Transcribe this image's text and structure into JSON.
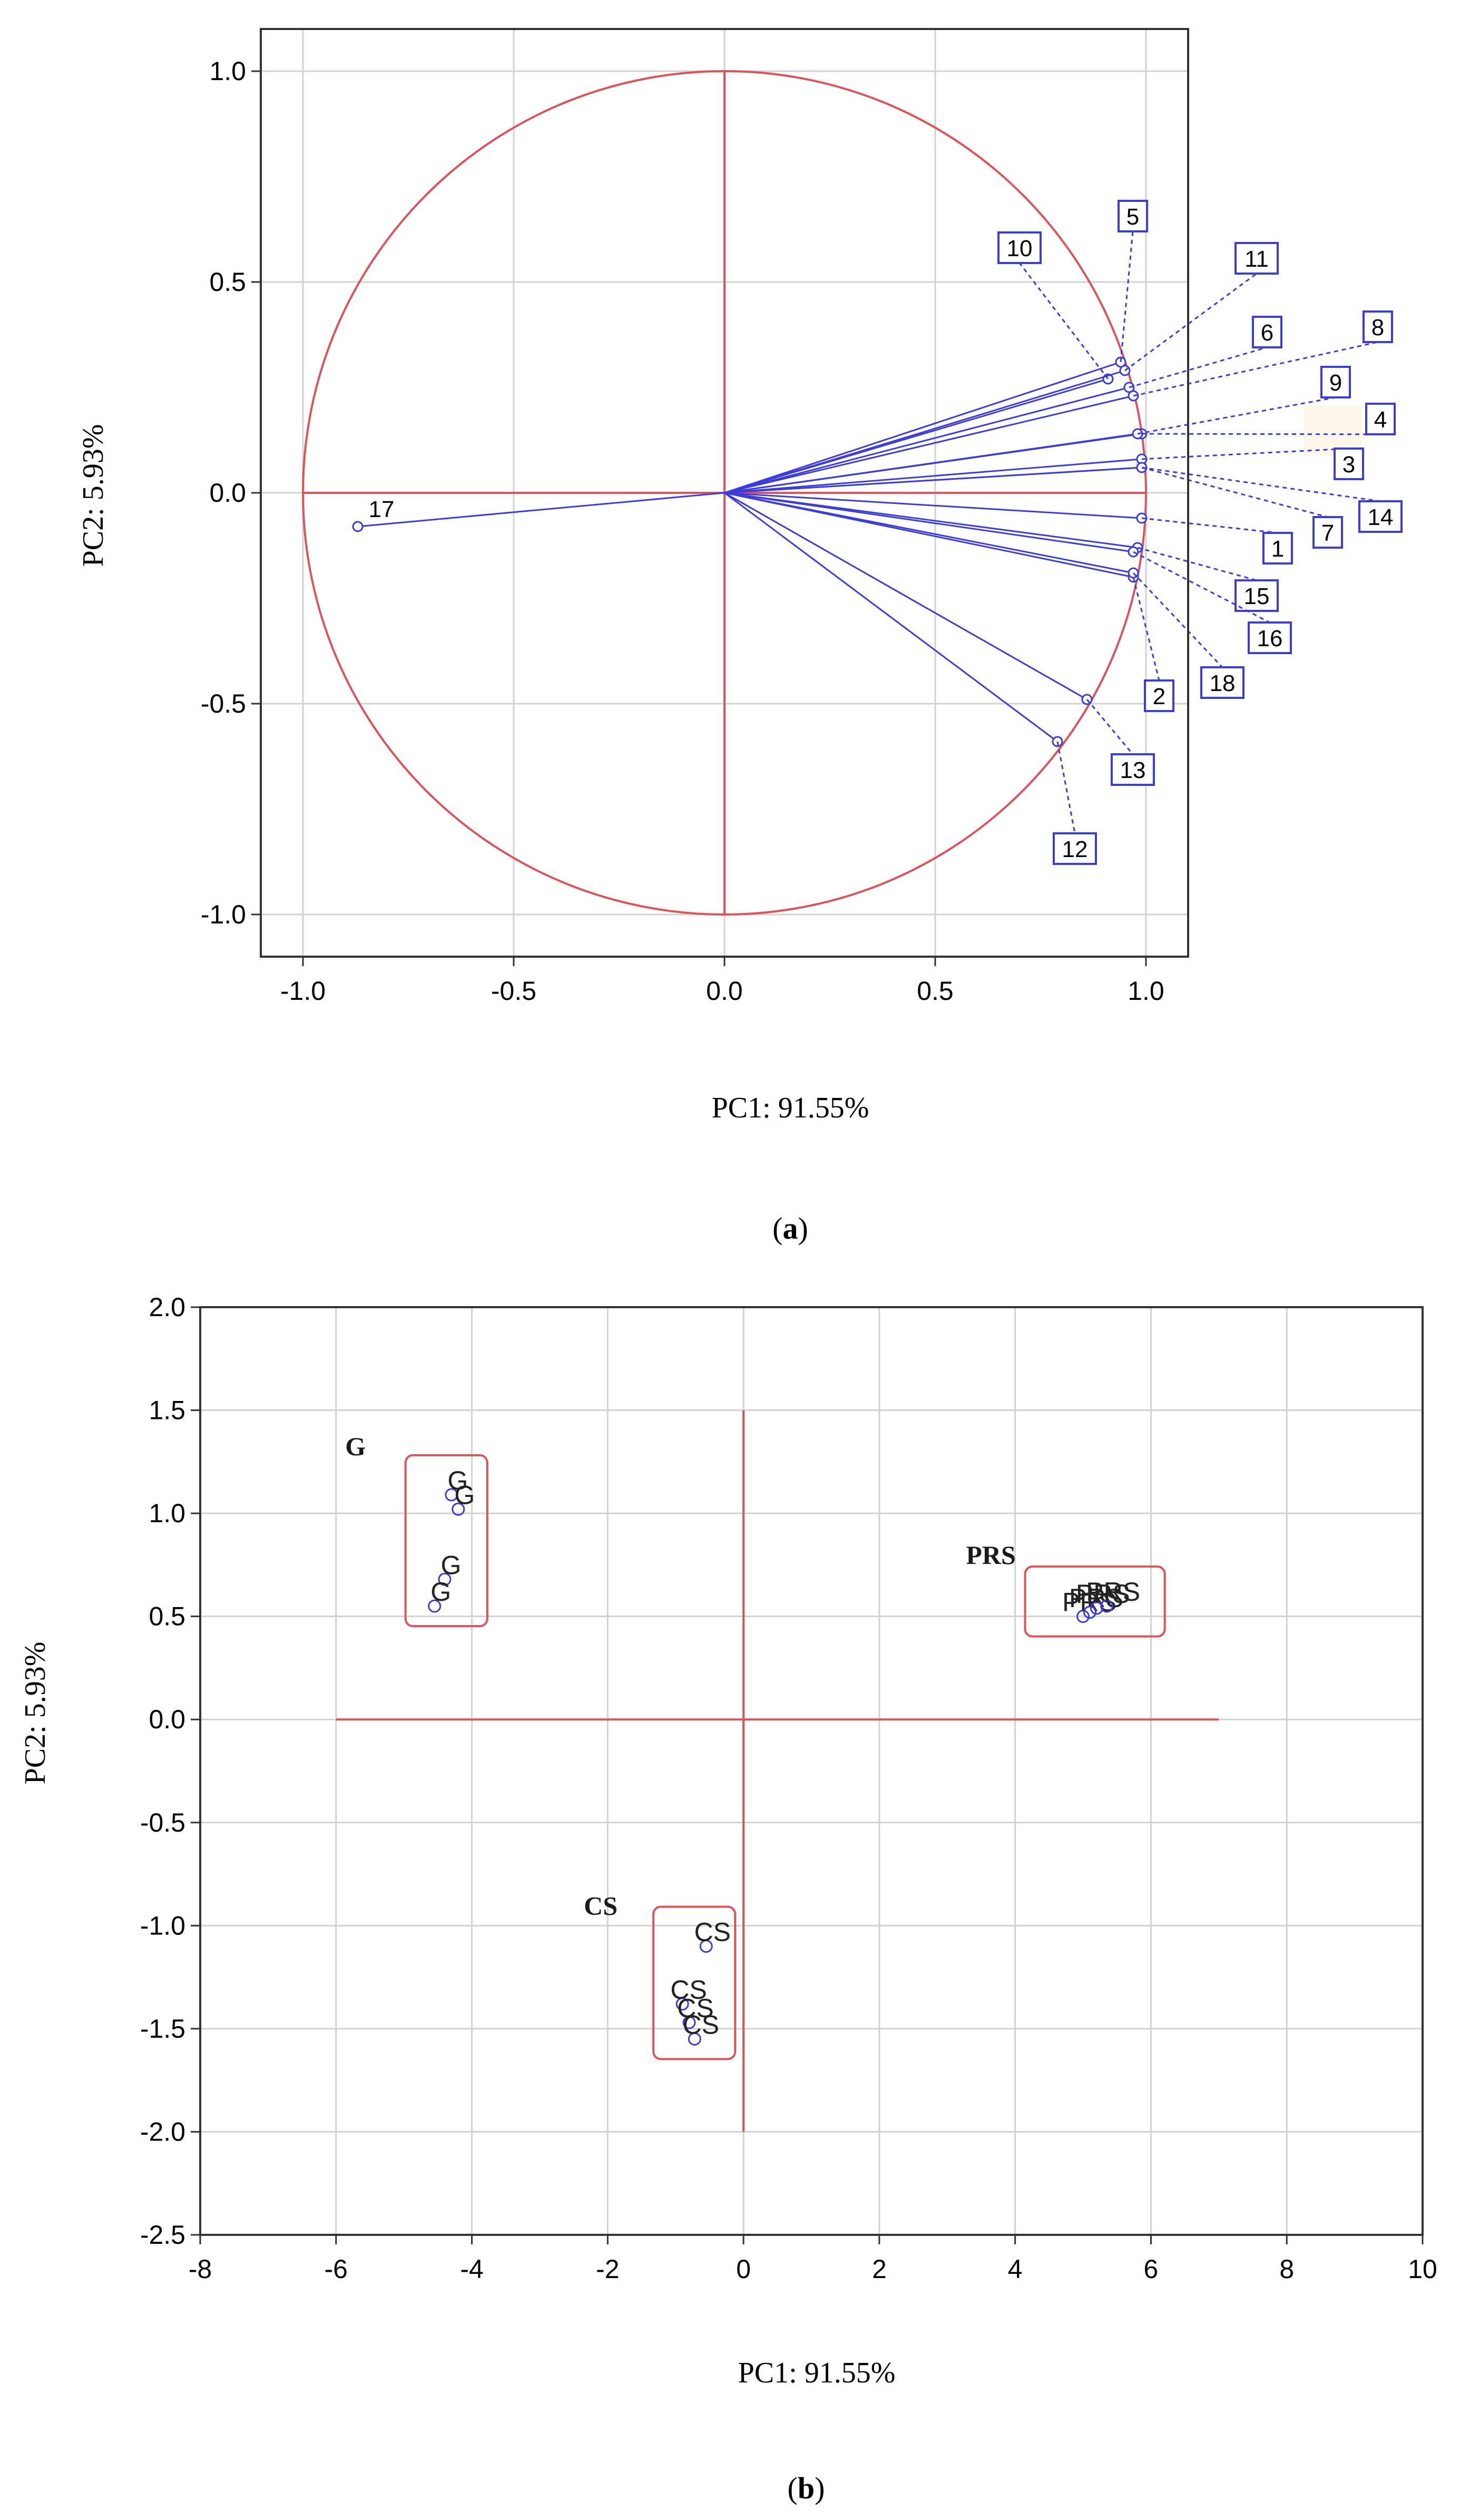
{
  "chart_data": [
    {
      "type": "scatter",
      "subtype": "pca-loadings-circle",
      "xlabel": "PC1: 91.55%",
      "ylabel": "PC2: 5.93%",
      "xlim": [
        -1.1,
        1.1
      ],
      "ylim": [
        -1.1,
        1.1
      ],
      "x_ticks": [
        "-1.0",
        "-0.5",
        "0.0",
        "0.5",
        "1.0"
      ],
      "y_ticks": [
        "1.0",
        "0.5",
        "0.0",
        "-0.5",
        "-1.0"
      ],
      "grid": true,
      "unit_circle": true,
      "caption_letter": "a",
      "loadings": [
        {
          "label": "1",
          "x": 0.99,
          "y": -0.06
        },
        {
          "label": "2",
          "x": 0.97,
          "y": -0.2
        },
        {
          "label": "3",
          "x": 0.99,
          "y": 0.08
        },
        {
          "label": "4",
          "x": 0.99,
          "y": 0.14
        },
        {
          "label": "5",
          "x": 0.94,
          "y": 0.31
        },
        {
          "label": "6",
          "x": 0.96,
          "y": 0.25
        },
        {
          "label": "7",
          "x": 0.99,
          "y": 0.06
        },
        {
          "label": "8",
          "x": 0.97,
          "y": 0.23
        },
        {
          "label": "9",
          "x": 0.98,
          "y": 0.14
        },
        {
          "label": "10",
          "x": 0.91,
          "y": 0.27
        },
        {
          "label": "11",
          "x": 0.95,
          "y": 0.29
        },
        {
          "label": "12",
          "x": 0.79,
          "y": -0.59
        },
        {
          "label": "13",
          "x": 0.86,
          "y": -0.49
        },
        {
          "label": "14",
          "x": 0.99,
          "y": 0.06
        },
        {
          "label": "15",
          "x": 0.98,
          "y": -0.13
        },
        {
          "label": "16",
          "x": 0.97,
          "y": -0.14
        },
        {
          "label": "17",
          "x": -0.87,
          "y": -0.08
        },
        {
          "label": "18",
          "x": 0.97,
          "y": -0.19
        }
      ]
    },
    {
      "type": "scatter",
      "subtype": "pca-scores",
      "xlabel": "PC1: 91.55%",
      "ylabel": "PC2: 5.93%",
      "xlim": [
        -8,
        10
      ],
      "ylim": [
        -2.5,
        2.0
      ],
      "x_ticks": [
        "-8",
        "-6",
        "-4",
        "-2",
        "0",
        "2",
        "4",
        "6",
        "8",
        "10"
      ],
      "y_ticks": [
        "2.0",
        "1.5",
        "1.0",
        "0.5",
        "0.0",
        "-0.5",
        "-1.0",
        "-1.5",
        "-2.0",
        "-2.5"
      ],
      "grid": true,
      "caption_letter": "b",
      "groups": [
        {
          "name": "G",
          "points": [
            {
              "label": "G",
              "x": -4.3,
              "y": 1.09
            },
            {
              "label": "G",
              "x": -4.2,
              "y": 1.02
            },
            {
              "label": "G",
              "x": -4.4,
              "y": 0.68
            },
            {
              "label": "G",
              "x": -4.55,
              "y": 0.55
            }
          ]
        },
        {
          "name": "PRS",
          "points": [
            {
              "label": "PRS",
              "x": 5.0,
              "y": 0.5
            },
            {
              "label": "PRS",
              "x": 5.1,
              "y": 0.52
            },
            {
              "label": "PRS",
              "x": 5.2,
              "y": 0.54
            },
            {
              "label": "PRS",
              "x": 5.35,
              "y": 0.55
            }
          ]
        },
        {
          "name": "CS",
          "points": [
            {
              "label": "CS",
              "x": -0.55,
              "y": -1.1
            },
            {
              "label": "CS",
              "x": -0.9,
              "y": -1.38
            },
            {
              "label": "CS",
              "x": -0.8,
              "y": -1.47
            },
            {
              "label": "CS",
              "x": -0.72,
              "y": -1.55
            }
          ]
        }
      ]
    }
  ]
}
